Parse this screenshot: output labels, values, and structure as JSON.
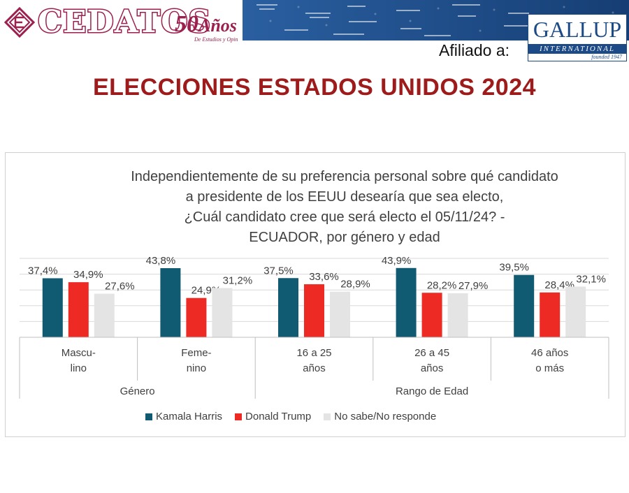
{
  "header": {
    "brand": "CEDATOS",
    "anniversary_number": "50",
    "anniversary_word": "Años",
    "anniversary_sub": "De Estudios y Opin",
    "affiliated_label": "Afiliado a:",
    "gallup_name": "GALLUP",
    "gallup_sub": "INTERNATIONAL",
    "gallup_founded": "founded 1947"
  },
  "page_title": "ELECCIONES ESTADOS UNIDOS 2024",
  "colors": {
    "brand": "#9c1f4e",
    "title": "#9e1b1b",
    "harris": "#105a72",
    "trump": "#ee2a24",
    "nsnr": "#e4e4e4",
    "banner": "#1c4a86"
  },
  "chart_data": {
    "type": "bar",
    "title_lines": [
      "Independientemente de su preferencia personal sobre qué candidato",
      "a presidente de los EEUU desearía que sea electo,",
      "¿Cuál candidato cree que será electo el 05/11/24? -",
      "ECUADOR, por género y edad"
    ],
    "categories": [
      [
        "Mascu-",
        "lino"
      ],
      [
        "Feme-",
        "nino"
      ],
      [
        "16 a 25",
        "años"
      ],
      [
        "26 a 45",
        "años"
      ],
      [
        "46 años",
        "o más"
      ]
    ],
    "groups": [
      {
        "label": "Género",
        "categories": [
          0,
          1
        ]
      },
      {
        "label": "Rango de Edad",
        "categories": [
          2,
          3,
          4
        ]
      }
    ],
    "series": [
      {
        "name": "Kamala Harris",
        "values": [
          37.4,
          43.8,
          37.5,
          43.9,
          39.5
        ],
        "labels": [
          "37,4%",
          "43,8%",
          "37,5%",
          "43,9%",
          "39,5%"
        ]
      },
      {
        "name": "Donald Trump",
        "values": [
          34.9,
          24.9,
          33.6,
          28.2,
          28.4
        ],
        "labels": [
          "34,9%",
          "24,9%",
          "33,6%",
          "28,2%",
          "28,4%"
        ]
      },
      {
        "name": "No sabe/No responde",
        "values": [
          27.6,
          31.2,
          28.9,
          27.9,
          32.1
        ],
        "labels": [
          "27,6%",
          "31,2%",
          "28,9%",
          "27,9%",
          "32,1%"
        ]
      }
    ],
    "ylim": [
      0,
      50
    ],
    "grid": true,
    "legend_position": "bottom"
  }
}
